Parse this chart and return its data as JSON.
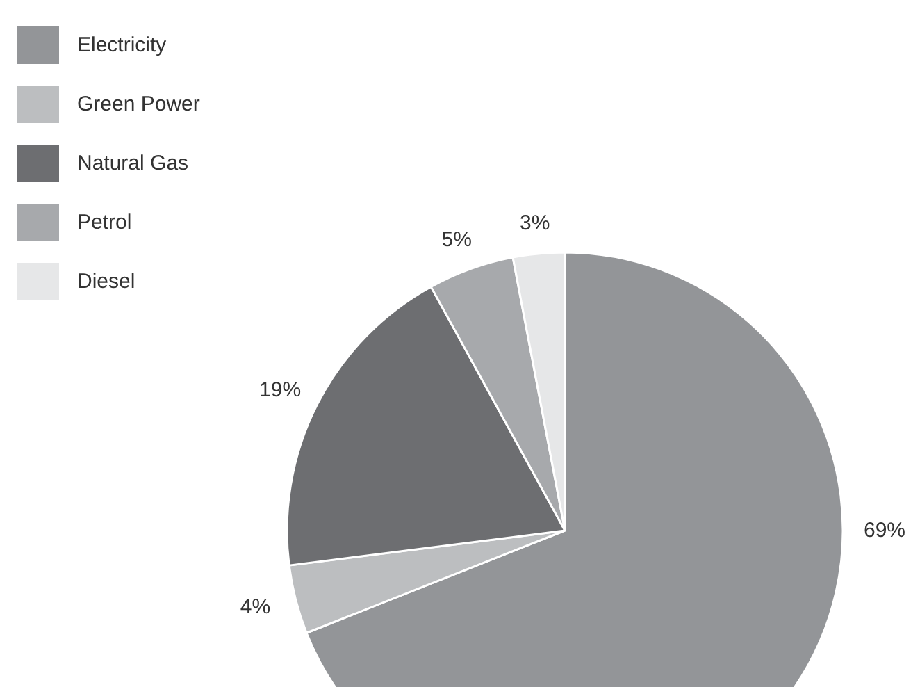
{
  "chart_data": {
    "type": "pie",
    "categories": [
      "Electricity",
      "Green Power",
      "Natural Gas",
      "Petrol",
      "Diesel"
    ],
    "values": [
      69,
      4,
      19,
      5,
      3
    ],
    "colors": [
      "#939598",
      "#bcbec0",
      "#6d6e71",
      "#a7a9ac",
      "#e6e7e8"
    ],
    "value_labels": [
      "69%",
      "4%",
      "19%",
      "5%",
      "3%"
    ],
    "legend": "top left"
  }
}
